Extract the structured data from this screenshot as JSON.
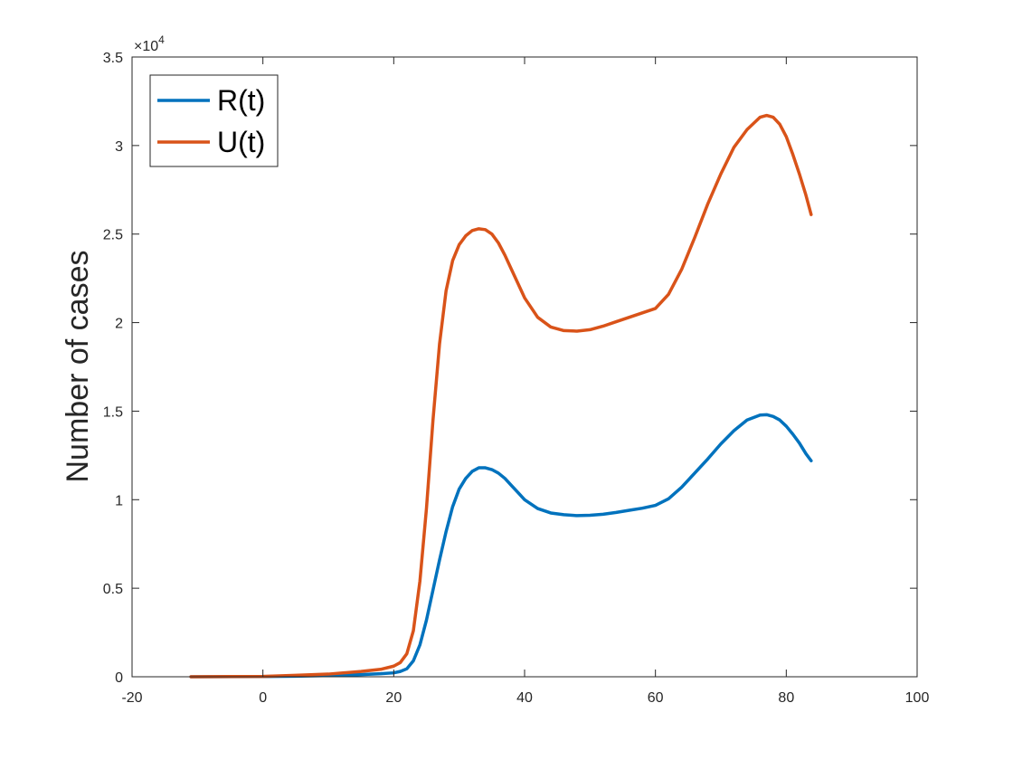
{
  "chart_data": {
    "type": "line",
    "title": "",
    "xlabel": "",
    "ylabel": "Number of cases",
    "xlim": [
      -20,
      100
    ],
    "ylim": [
      0,
      35000
    ],
    "x_ticks": [
      "-20",
      "0",
      "20",
      "40",
      "60",
      "80",
      "100"
    ],
    "y_ticks": [
      "0",
      "0.5",
      "1",
      "1.5",
      "2",
      "2.5",
      "3",
      "3.5"
    ],
    "y_exponent_label": "×10",
    "y_exponent_power": "4",
    "grid": false,
    "legend_placement": "top-left",
    "series": [
      {
        "name": "R(t)",
        "color": "#0072BD",
        "x": [
          -11,
          0,
          5,
          10,
          15,
          18,
          20,
          21,
          22,
          23,
          24,
          25,
          26,
          27,
          28,
          29,
          30,
          31,
          32,
          33,
          34,
          35,
          36,
          37,
          38,
          39,
          40,
          42,
          44,
          46,
          48,
          50,
          52,
          54,
          56,
          58,
          60,
          62,
          64,
          66,
          68,
          70,
          72,
          74,
          76,
          77,
          78,
          79,
          80,
          81,
          82,
          83,
          83.8
        ],
        "y": [
          0,
          10,
          30,
          70,
          120,
          170,
          220,
          300,
          450,
          900,
          1800,
          3200,
          4900,
          6600,
          8200,
          9600,
          10600,
          11200,
          11600,
          11800,
          11800,
          11700,
          11500,
          11200,
          10800,
          10400,
          10000,
          9500,
          9250,
          9150,
          9100,
          9120,
          9180,
          9280,
          9400,
          9520,
          9680,
          10050,
          10700,
          11500,
          12300,
          13150,
          13900,
          14500,
          14780,
          14800,
          14700,
          14500,
          14150,
          13700,
          13200,
          12600,
          12200
        ]
      },
      {
        "name": "U(t)",
        "color": "#D95319",
        "x": [
          -11,
          0,
          5,
          10,
          15,
          18,
          20,
          21,
          22,
          23,
          24,
          25,
          26,
          27,
          28,
          29,
          30,
          31,
          32,
          33,
          34,
          35,
          36,
          37,
          38,
          39,
          40,
          42,
          44,
          46,
          48,
          50,
          52,
          54,
          56,
          58,
          60,
          62,
          64,
          66,
          68,
          70,
          72,
          74,
          76,
          77,
          78,
          79,
          80,
          81,
          82,
          83,
          83.8
        ],
        "y": [
          0,
          20,
          80,
          150,
          300,
          420,
          600,
          800,
          1300,
          2600,
          5400,
          9500,
          14500,
          18800,
          21800,
          23500,
          24400,
          24900,
          25200,
          25300,
          25250,
          25000,
          24500,
          23800,
          23000,
          22200,
          21400,
          20300,
          19750,
          19550,
          19520,
          19600,
          19800,
          20050,
          20300,
          20550,
          20800,
          21600,
          23000,
          24800,
          26700,
          28400,
          29900,
          30900,
          31600,
          31700,
          31600,
          31200,
          30500,
          29500,
          28400,
          27200,
          26100
        ]
      }
    ]
  }
}
